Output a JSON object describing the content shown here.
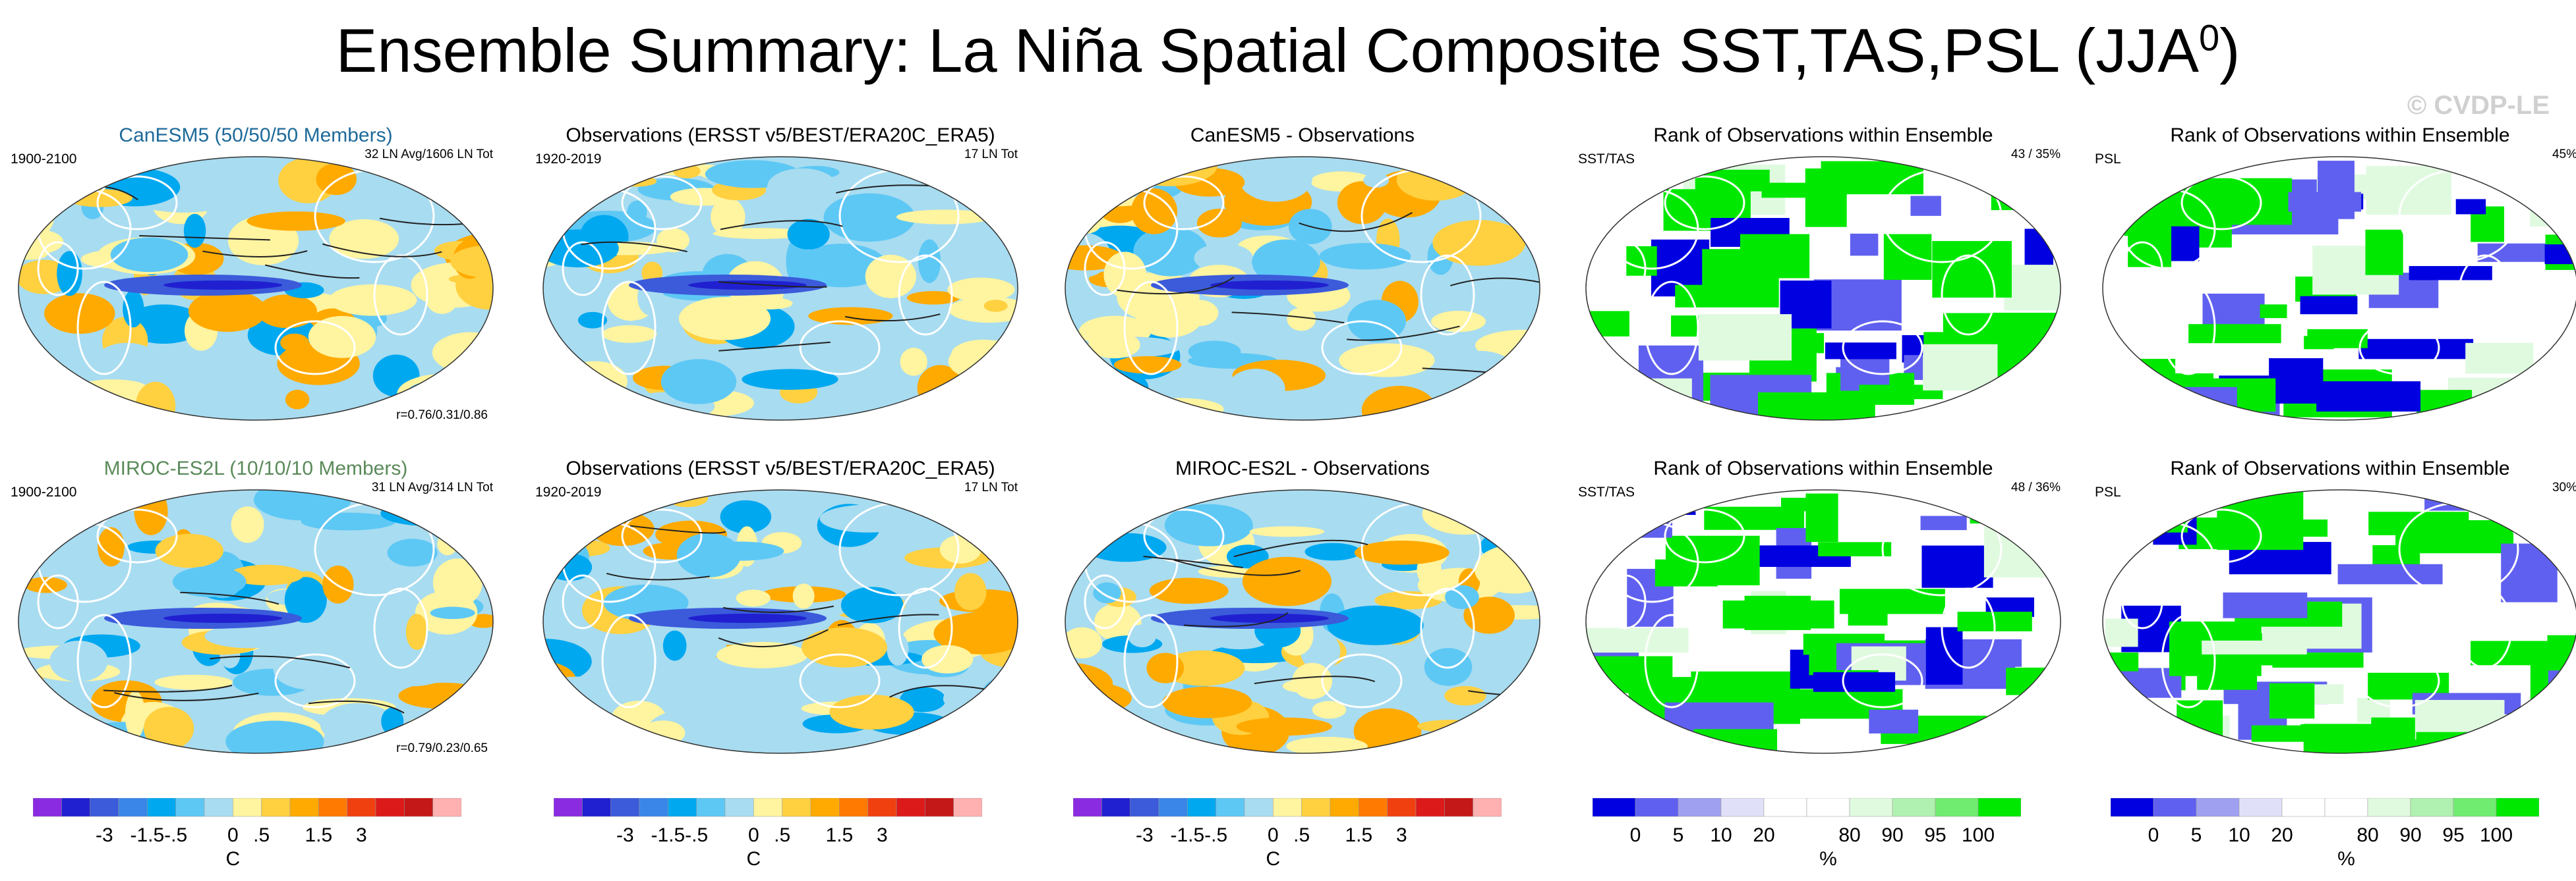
{
  "header": {
    "title": "Ensemble Summary: La Niña Spatial Composite SST,TAS,PSL (JJA",
    "title_sup": "0",
    "title_close": ")",
    "watermark": "© CVDP-LE"
  },
  "rows": [
    {
      "panels": [
        {
          "title": "CanESM5 (50/50/50 Members)",
          "left": "1900-2100",
          "right": "32 LN Avg/1606 LN Tot",
          "bottom": "r=0.76/0.31/0.86"
        },
        {
          "title": "Observations (ERSST v5/BEST/ERA20C_ERA5)",
          "left": "1920-2019",
          "right": "17 LN Tot",
          "bottom": ""
        },
        {
          "title": "CanESM5 - Observations",
          "left": "",
          "right": "",
          "bottom": ""
        },
        {
          "title": "Rank of Observations within Ensemble",
          "left": "SST/TAS",
          "right": "43 /  35%",
          "bottom": ""
        },
        {
          "title": "Rank of Observations within Ensemble",
          "left": "PSL",
          "right": "45%",
          "bottom": ""
        }
      ]
    },
    {
      "panels": [
        {
          "title": "MIROC-ES2L (10/10/10 Members)",
          "left": "1900-2100",
          "right": "31 LN Avg/314 LN Tot",
          "bottom": "r=0.79/0.23/0.65"
        },
        {
          "title": "Observations (ERSST v5/BEST/ERA20C_ERA5)",
          "left": "1920-2019",
          "right": "17 LN Tot",
          "bottom": ""
        },
        {
          "title": "MIROC-ES2L - Observations",
          "left": "",
          "right": "",
          "bottom": ""
        },
        {
          "title": "Rank of Observations within Ensemble",
          "left": "SST/TAS",
          "right": "48 /  36%",
          "bottom": ""
        },
        {
          "title": "Rank of Observations within Ensemble",
          "left": "PSL",
          "right": "30%",
          "bottom": ""
        }
      ]
    }
  ],
  "colorbars": {
    "anomaly": {
      "unit": "C",
      "labels": [
        "-3",
        "-1.5",
        "-.5",
        "0",
        ".5",
        "1.5",
        "3"
      ],
      "colors": [
        "#8a2be2",
        "#2020d0",
        "#3b5bdb",
        "#3a86e8",
        "#00a8f0",
        "#5ec8f5",
        "#a8dcf0",
        "#fff4a0",
        "#ffd040",
        "#ffaa00",
        "#ff7a00",
        "#f04010",
        "#dd1a1a",
        "#c41818",
        "#ffb0b0"
      ]
    },
    "rank": {
      "unit": "%",
      "labels": [
        "0",
        "5",
        "10",
        "20",
        "80",
        "90",
        "95",
        "100"
      ],
      "colors": [
        "#0000e0",
        "#6060f0",
        "#a0a0f0",
        "#e0e0f8",
        "#ffffff",
        "#ffffff",
        "#e0fae0",
        "#b0f0b0",
        "#70ec70",
        "#00e800"
      ]
    }
  }
}
